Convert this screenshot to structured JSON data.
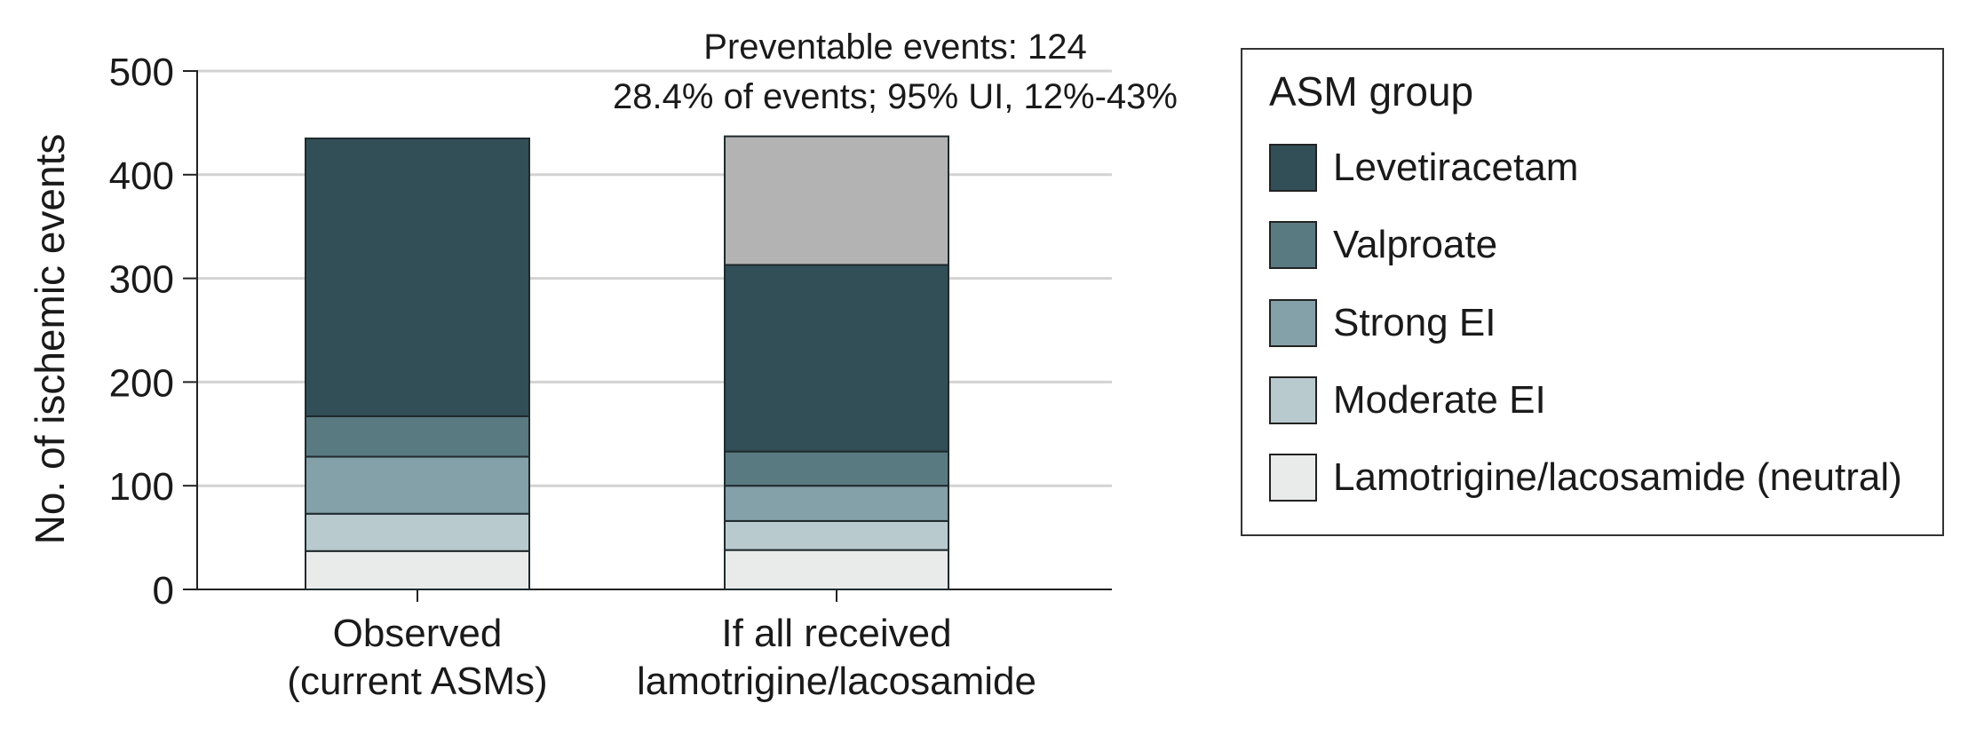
{
  "chart_data": {
    "type": "bar",
    "stacked": true,
    "categories": [
      [
        "Observed",
        "(current ASMs)"
      ],
      [
        "If all received",
        "lamotrigine/lacosamide"
      ]
    ],
    "ylabel": "No. of ischemic events",
    "ylim": [
      0,
      500
    ],
    "yticks": [
      0,
      100,
      200,
      300,
      400,
      500
    ],
    "grid": "horizontal",
    "legend_title": "ASM group",
    "legend_position": "right",
    "series": [
      {
        "name": "Lamotrigine/lacosamide (neutral)",
        "color": "#e8ebea",
        "values": [
          37,
          38
        ]
      },
      {
        "name": "Moderate EI",
        "color": "#b9cacf",
        "values": [
          36,
          28
        ]
      },
      {
        "name": "Strong EI",
        "color": "#84a0a8",
        "values": [
          55,
          34
        ]
      },
      {
        "name": "Valproate",
        "color": "#5a7a82",
        "values": [
          39,
          33
        ]
      },
      {
        "name": "Levetiracetam",
        "color": "#324f58",
        "values": [
          268,
          180
        ]
      },
      {
        "name": "",
        "color": "#b3b3b3",
        "values": [
          0,
          124
        ]
      }
    ],
    "annotations": [
      "Preventable events: 124",
      "28.4% of events; 95% UI, 12%-43%"
    ]
  }
}
